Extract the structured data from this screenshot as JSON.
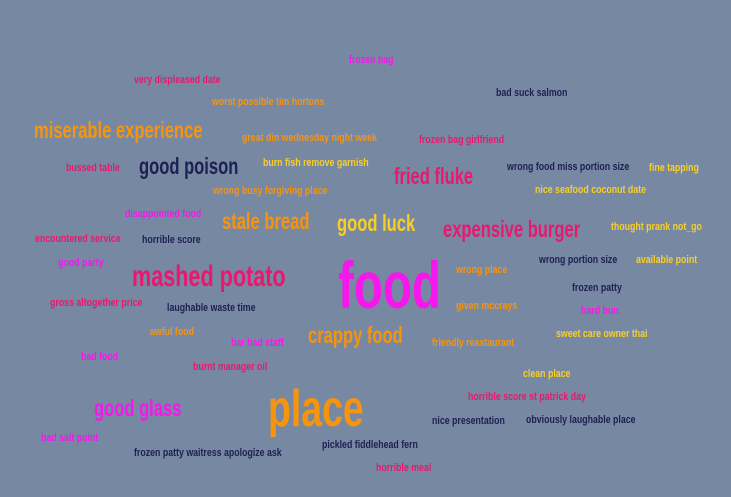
{
  "palette": {
    "background": "#7788a3",
    "magenta": "#f716ec",
    "pink": "#e8186f",
    "orange": "#f7940e",
    "yellow": "#f9cf25",
    "navy": "#1e1f52"
  },
  "words": {
    "food": "food",
    "place": "place",
    "mashed_potato": "mashed potato",
    "miserable_experience": "miserable experience",
    "good_poison": "good poison",
    "fried_fluke": "fried fluke",
    "expensive_burger": "expensive burger",
    "stale_bread": "stale bread",
    "good_luck": "good luck",
    "crappy_food": "crappy food",
    "good_glass": "good glass",
    "frozen_bag": "frozen bag",
    "very_displeased_date": "very displeased date",
    "worst_possible_tim_hortons": "worst possible tim hortons",
    "bad_suck_salmon": "bad suck salmon",
    "great_din_wednesday_night_week": "great din wednesday night week",
    "frozen_bag_girlfriend": "frozen bag girlfriend",
    "bussed_table": "bussed table",
    "burn_fish_remove_garnish": "burn fish remove garnish",
    "wrong_food_miss_portion_size": "wrong food miss portion size",
    "fine_tapping": "fine tapping",
    "wrong_busy_forgiving_place": "wrong busy forgiving place",
    "nice_seafood_coconut_date": "nice seafood coconut date",
    "disappointed_food": "disappointed food",
    "thought_prank_not_go": "thought prank not_go",
    "encountered_service": "encountered service",
    "horrible_score": "horrible score",
    "good_party": "good party",
    "wrong_place": "wrong place",
    "wrong_portion_size": "wrong portion size",
    "available_point": "available point",
    "frozen_patty": "frozen patty",
    "gross_altogether_price": "gross altogether price",
    "laughable_waste_time": "laughable waste time",
    "given_mccrays": "given mccrays",
    "hard_bun": "hard bun",
    "awful_food": "awful food",
    "bar_had_staff": "bar had staff",
    "friendly_reastaurant": "friendly reastaurant",
    "sweet_care_owner_thai": "sweet care owner thai",
    "bad_food": "bad food",
    "burnt_manager_oil": "burnt manager oil",
    "clean_place": "clean place",
    "horrible_score_st_patrick_day": "horrible score st patrick day",
    "nice_presentation": "nice presentation",
    "obviously_laughable_place": "obviously laughable place",
    "bad_salt_point": "bad salt point",
    "pickled_fiddlehead_fern": "pickled fiddlehead fern",
    "frozen_patty_waitress_apologize_ask": "frozen patty waitress apologize ask",
    "horrible_meal": "horrible meal"
  }
}
